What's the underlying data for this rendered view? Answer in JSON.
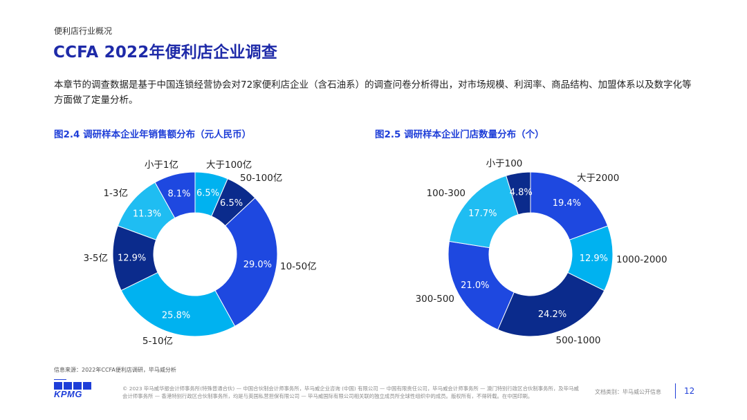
{
  "header": {
    "section_label": "便利店行业概况",
    "title": "CCFA 2022年便利店企业调查"
  },
  "intro": "本章节的调查数据是基于中国连锁经营协会对72家便利店企业（含石油系）的调查问卷分析得出，对市场规模、利润率、商品结构、加盟体系以及数字化等方面做了定量分析。",
  "chart_data": [
    {
      "type": "donut",
      "title": "图2.4 调研样本企业年销售额分布（元人民币）",
      "slices": [
        {
          "label": "大于100亿",
          "value": 6.5,
          "value_text": "6.5%",
          "color": "#00b2f0"
        },
        {
          "label": "50-100亿",
          "value": 6.5,
          "value_text": "6.5%",
          "color": "#0b2b8c"
        },
        {
          "label": "10-50亿",
          "value": 29.0,
          "value_text": "29.0%",
          "color": "#1e48e0"
        },
        {
          "label": "5-10亿",
          "value": 25.8,
          "value_text": "25.8%",
          "color": "#00b2f0"
        },
        {
          "label": "3-5亿",
          "value": 12.9,
          "value_text": "12.9%",
          "color": "#0b2b8c"
        },
        {
          "label": "1-3亿",
          "value": 11.3,
          "value_text": "11.3%",
          "color": "#1fbdf2"
        },
        {
          "label": "小于1亿",
          "value": 8.1,
          "value_text": "8.1%",
          "color": "#1e48e0"
        }
      ]
    },
    {
      "type": "donut",
      "title": "图2.5 调研样本企业门店数量分布（个）",
      "slices": [
        {
          "label": "大于2000",
          "value": 19.4,
          "value_text": "19.4%",
          "color": "#1e48e0"
        },
        {
          "label": "1000-2000",
          "value": 12.9,
          "value_text": "12.9%",
          "color": "#00b2f0"
        },
        {
          "label": "500-1000",
          "value": 24.2,
          "value_text": "24.2%",
          "color": "#0b2b8c"
        },
        {
          "label": "300-500",
          "value": 21.0,
          "value_text": "21.0%",
          "color": "#1e48e0"
        },
        {
          "label": "100-300",
          "value": 17.7,
          "value_text": "17.7%",
          "color": "#1fbdf2"
        },
        {
          "label": "小于100",
          "value": 4.8,
          "value_text": "4.8%",
          "color": "#0b2b8c"
        }
      ]
    }
  ],
  "source": "信息来源：2022年CCFA便利店调研，毕马威分析",
  "footer": {
    "logo_text": "KPMG",
    "disclaimer": "© 2023 毕马威华振会计师事务所(特殊普通合伙) — 中国合伙制会计师事务所，毕马威企业咨询 (中国) 有限公司 — 中国有限责任公司，毕马威会计师事务所 — 澳门特别行政区合伙制事务所，及毕马威会计师事务所 — 香港特别行政区合伙制事务所，均是与英国私营担保有限公司 — 毕马威国际有限公司相关联的独立成员所全球性组织中的成员。版权所有，不得转载。在中国印刷。",
    "doc_class": "文档类别：毕马威公开信息",
    "page_number": "12"
  }
}
